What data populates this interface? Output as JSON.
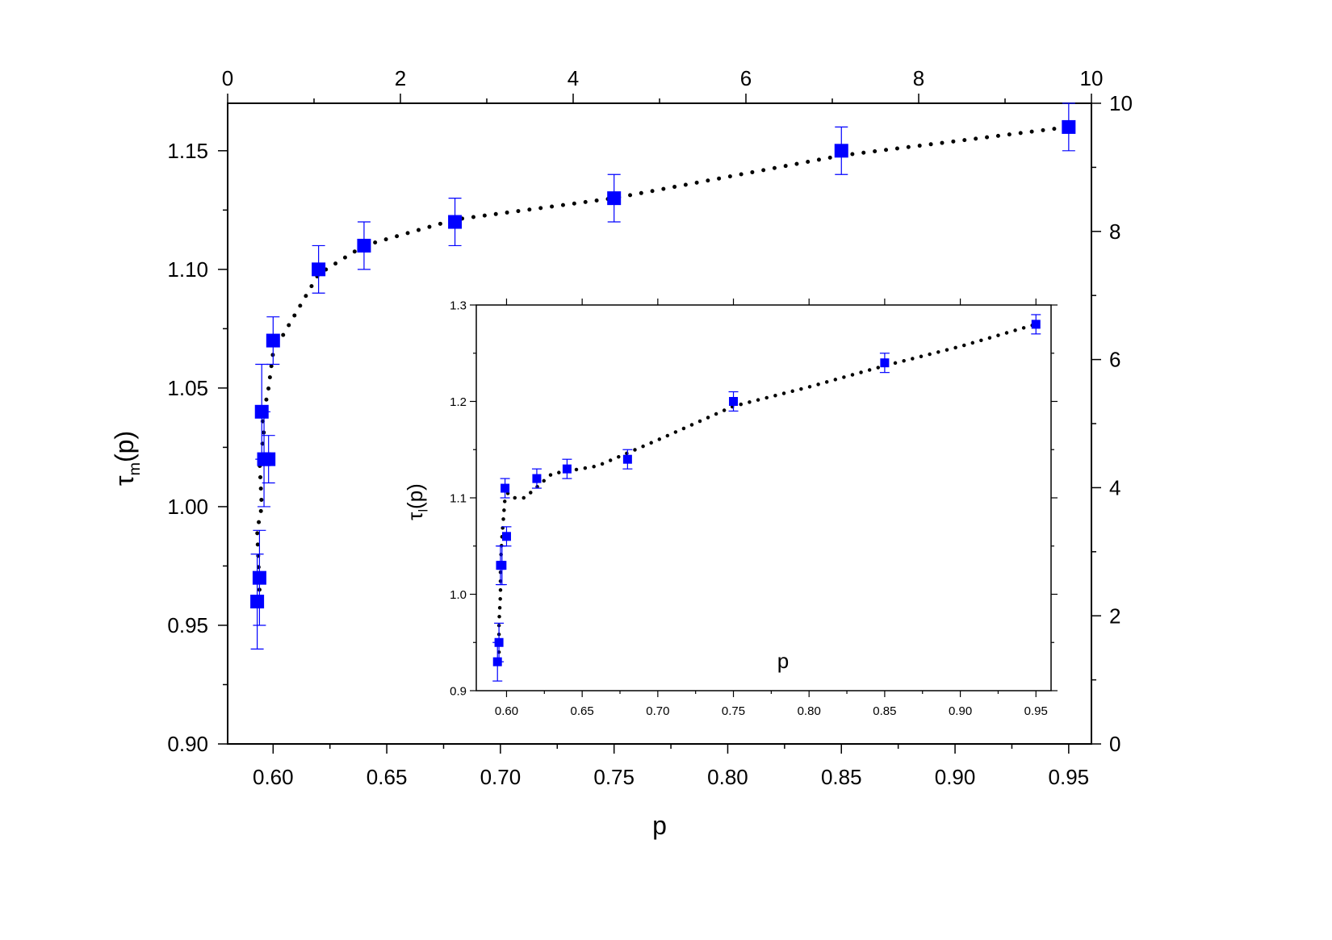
{
  "chart_data": [
    {
      "type": "scatter",
      "title": "",
      "xlabel": "p",
      "ylabel_main": "τ",
      "ylabel_sub": "m",
      "ylabel_tail": "(p)",
      "xlim": [
        0.58,
        0.96
      ],
      "ylim": [
        0.9,
        1.17
      ],
      "x_ticks": [
        0.6,
        0.65,
        0.7,
        0.75,
        0.8,
        0.85,
        0.9,
        0.95
      ],
      "x_tick_labels": [
        "0.60",
        "0.65",
        "0.70",
        "0.75",
        "0.80",
        "0.85",
        "0.90",
        "0.95"
      ],
      "y_ticks": [
        0.9,
        0.95,
        1.0,
        1.05,
        1.1,
        1.15
      ],
      "y_tick_labels": [
        "0.90",
        "0.95",
        "1.00",
        "1.05",
        "1.10",
        "1.15"
      ],
      "top_axis": {
        "lim": [
          0,
          10
        ],
        "ticks": [
          0,
          2,
          4,
          6,
          8,
          10
        ],
        "tick_labels": [
          "0",
          "2",
          "4",
          "6",
          "8",
          "10"
        ]
      },
      "right_axis": {
        "lim": [
          0,
          10
        ],
        "ticks": [
          0,
          2,
          4,
          6,
          8,
          10
        ],
        "tick_labels": [
          "0",
          "2",
          "4",
          "6",
          "8",
          "10"
        ]
      },
      "marker_color": "#0000ff",
      "fit_color": "#000000",
      "series": [
        {
          "x": [
            0.593,
            0.594,
            0.595,
            0.596,
            0.598,
            0.6,
            0.62,
            0.64,
            0.68,
            0.75,
            0.85,
            0.95
          ],
          "y": [
            0.96,
            0.97,
            1.04,
            1.02,
            1.02,
            1.07,
            1.1,
            1.11,
            1.12,
            1.13,
            1.15,
            1.16
          ],
          "yerr": [
            0.02,
            0.02,
            0.02,
            0.02,
            0.01,
            0.01,
            0.01,
            0.01,
            0.01,
            0.01,
            0.01,
            0.01
          ]
        }
      ],
      "fit_line": {
        "x": [
          0.594,
          0.593,
          0.595,
          0.594,
          0.596,
          0.595,
          0.597,
          0.598,
          0.6,
          0.606,
          0.62,
          0.64,
          0.68,
          0.75,
          0.85,
          0.95
        ],
        "y": [
          0.965,
          0.99,
          1.0,
          1.02,
          1.03,
          1.04,
          1.045,
          1.05,
          1.065,
          1.075,
          1.098,
          1.11,
          1.121,
          1.13,
          1.148,
          1.16
        ]
      }
    },
    {
      "type": "scatter",
      "title": "",
      "xlabel": "p",
      "ylabel_main": "τ",
      "ylabel_sub": "l",
      "ylabel_tail": "(p)",
      "xlim": [
        0.58,
        0.96
      ],
      "ylim": [
        0.9,
        1.3
      ],
      "x_ticks": [
        0.6,
        0.65,
        0.7,
        0.75,
        0.8,
        0.85,
        0.9,
        0.95
      ],
      "x_tick_labels": [
        "0.60",
        "0.65",
        "0.70",
        "0.75",
        "0.80",
        "0.85",
        "0.90",
        "0.95"
      ],
      "y_ticks": [
        0.9,
        1.0,
        1.1,
        1.2,
        1.3
      ],
      "y_tick_labels": [
        "0.9",
        "1.0",
        "1.1",
        "1.2",
        "1.3"
      ],
      "marker_color": "#0000ff",
      "fit_color": "#000000",
      "series": [
        {
          "x": [
            0.594,
            0.595,
            0.596,
            0.597,
            0.599,
            0.6,
            0.62,
            0.64,
            0.68,
            0.75,
            0.85,
            0.95
          ],
          "y": [
            0.93,
            0.95,
            1.03,
            1.03,
            1.11,
            1.06,
            1.12,
            1.13,
            1.14,
            1.2,
            1.24,
            1.28
          ],
          "yerr": [
            0.02,
            0.02,
            0.02,
            0.02,
            0.01,
            0.01,
            0.01,
            0.01,
            0.01,
            0.01,
            0.01,
            0.01
          ]
        }
      ],
      "fit_line": {
        "x": [
          0.595,
          0.595,
          0.596,
          0.596,
          0.597,
          0.598,
          0.599,
          0.601,
          0.605,
          0.612,
          0.63,
          0.66,
          0.7,
          0.75,
          0.8,
          0.85,
          0.9,
          0.95
        ],
        "y": [
          0.94,
          0.97,
          1.0,
          1.03,
          1.06,
          1.08,
          1.1,
          1.105,
          1.1,
          1.1,
          1.125,
          1.133,
          1.16,
          1.195,
          1.215,
          1.237,
          1.257,
          1.28
        ]
      }
    }
  ]
}
